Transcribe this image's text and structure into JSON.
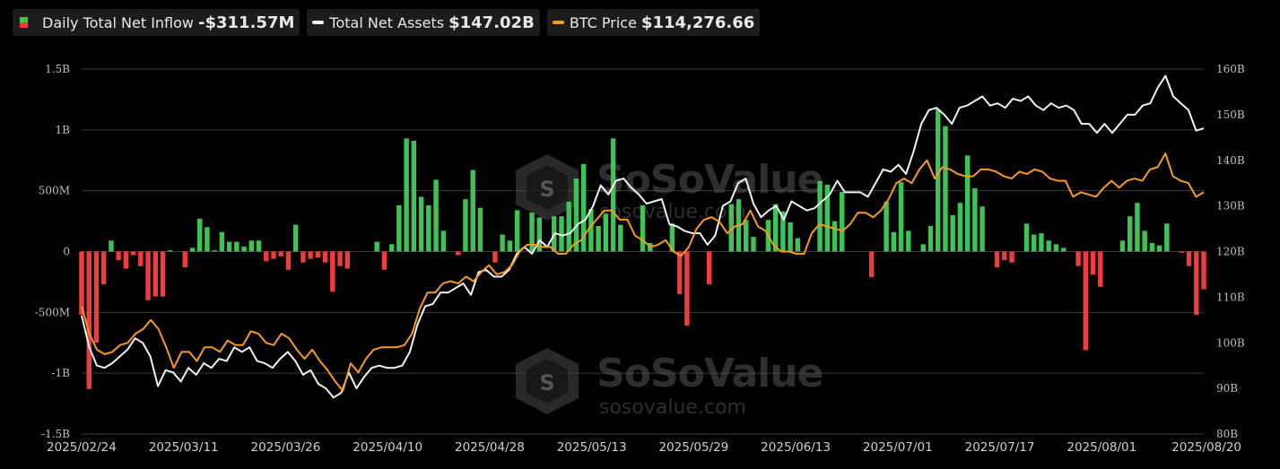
{
  "legend": {
    "inflow_label": "Daily Total Net Inflow",
    "inflow_value": "-$311.57M",
    "assets_label": "Total Net Assets",
    "assets_value": "$147.02B",
    "btc_label": "BTC Price",
    "btc_value": "$114,276.66"
  },
  "watermark": {
    "brand": "SoSoValue",
    "site": "sosovalue.com"
  },
  "colors": {
    "positive": "#3ec455",
    "negative": "#f03c3c",
    "assets": "#f2f2f2",
    "btc": "#f59a23",
    "grid": "#3a3a3a"
  },
  "chart_data": {
    "type": "bar",
    "title": "",
    "left_axis": {
      "range": [
        -1.5,
        1.5
      ],
      "unit": "B",
      "ticks": [
        "1.5B",
        "1B",
        "500M",
        "0",
        "-500M",
        "-1B",
        "-1.5B"
      ]
    },
    "right_axis": {
      "range": [
        80,
        160
      ],
      "unit": "B",
      "ticks": [
        "160B",
        "150B",
        "140B",
        "130B",
        "120B",
        "110B",
        "100B",
        "90B",
        "80B"
      ]
    },
    "x_tick_labels": [
      "2025/02/24",
      "2025/03/11",
      "2025/03/26",
      "2025/04/10",
      "2025/04/28",
      "2025/05/13",
      "2025/05/29",
      "2025/06/13",
      "2025/07/01",
      "2025/07/17",
      "2025/08/01",
      "2025/08/20"
    ],
    "grid": true,
    "series": [
      {
        "name": "Daily Total Net Inflow",
        "type": "bar",
        "axis": "left",
        "unit": "B",
        "values": [
          -0.52,
          -1.13,
          -0.75,
          -0.27,
          0.09,
          -0.07,
          -0.14,
          -0.03,
          -0.12,
          -0.4,
          -0.37,
          -0.37,
          0.01,
          0.0,
          -0.13,
          0.03,
          0.27,
          0.2,
          0.01,
          0.16,
          0.08,
          0.08,
          0.04,
          0.09,
          0.09,
          -0.08,
          -0.06,
          -0.04,
          -0.15,
          0.22,
          -0.09,
          -0.06,
          -0.05,
          -0.09,
          -0.33,
          -0.12,
          -0.14,
          0.0,
          0.0,
          0.0,
          0.08,
          -0.15,
          0.06,
          0.38,
          0.93,
          0.91,
          0.45,
          0.38,
          0.59,
          0.17,
          0.0,
          -0.03,
          0.43,
          0.67,
          0.36,
          0.0,
          -0.09,
          0.14,
          0.09,
          0.34,
          0.0,
          0.32,
          0.28,
          0.0,
          0.29,
          0.29,
          0.41,
          0.6,
          0.72,
          0.35,
          0.21,
          0.31,
          0.93,
          0.22,
          0.0,
          0.0,
          0.38,
          0.07,
          0.0,
          0.0,
          0.23,
          -0.35,
          -0.61,
          0.0,
          0.0,
          -0.27,
          0.0,
          0.0,
          0.39,
          0.43,
          0.26,
          0.12,
          0.0,
          0.26,
          0.39,
          0.33,
          0.24,
          0.11,
          0.0,
          0.0,
          0.58,
          0.55,
          0.25,
          0.49,
          0.0,
          0.0,
          0.0,
          -0.21,
          0.0,
          0.41,
          0.16,
          0.57,
          0.17,
          0.0,
          0.06,
          0.21,
          1.17,
          1.03,
          0.3,
          0.4,
          0.79,
          0.52,
          0.37,
          0.0,
          -0.13,
          -0.07,
          -0.09,
          0.0,
          0.23,
          0.14,
          0.15,
          0.09,
          0.06,
          0.03,
          0.0,
          -0.12,
          -0.81,
          -0.19,
          -0.29,
          0.0,
          0.0,
          0.09,
          0.29,
          0.4,
          0.17,
          0.07,
          0.05,
          0.23,
          0.0,
          -0.01,
          -0.12,
          -0.52,
          -0.31
        ]
      },
      {
        "name": "Total Net Assets",
        "type": "line",
        "axis": "right",
        "unit": "B",
        "values": [
          106,
          99,
          95,
          94.5,
          95.5,
          97,
          98.5,
          101,
          100,
          97,
          90.5,
          94,
          93.5,
          91.5,
          94.5,
          93,
          95.5,
          94.5,
          96.5,
          96,
          99,
          98,
          99,
          96,
          95.5,
          94.5,
          96.5,
          98,
          96,
          93,
          94,
          91,
          90,
          88,
          89,
          93.5,
          90,
          92.5,
          94.5,
          95,
          94.5,
          94.5,
          95,
          98,
          104,
          108,
          108.5,
          111,
          111,
          112,
          113,
          110.5,
          115.5,
          116,
          114.5,
          114.5,
          116,
          119.5,
          121,
          119.5,
          122.5,
          121,
          124,
          123.5,
          124,
          126,
          127,
          130,
          134.5,
          132.5,
          135.5,
          136,
          134,
          132.5,
          130.5,
          131,
          131.5,
          126,
          125.5,
          124.5,
          124,
          124,
          121.5,
          123.5,
          130,
          131,
          135,
          136,
          130.5,
          127.5,
          129,
          130,
          127,
          131,
          130,
          129,
          129.5,
          131,
          132.5,
          135.5,
          133,
          133,
          133,
          132,
          135,
          138,
          137.5,
          139,
          137,
          142,
          148,
          151,
          151.5,
          150,
          148,
          151.5,
          152,
          153,
          154,
          152,
          152.5,
          151.5,
          153.5,
          153,
          154,
          152,
          151,
          152.5,
          151.5,
          152,
          151,
          148,
          148,
          146,
          148,
          146,
          148,
          150,
          150,
          152,
          152.5,
          156,
          158.5,
          154,
          152.5,
          151,
          146.5,
          147
        ]
      },
      {
        "name": "BTC Price",
        "type": "line",
        "axis": "right",
        "unit": "B",
        "values": [
          108,
          102,
          98.5,
          97.5,
          98,
          99.5,
          100,
          102,
          103,
          105,
          103,
          99,
          94.5,
          98,
          98,
          96,
          99,
          99,
          98,
          100.5,
          99.5,
          99.5,
          102.5,
          102,
          100,
          99.5,
          102,
          101,
          98.5,
          96.5,
          98.5,
          96,
          94,
          91.5,
          89.5,
          95.5,
          93.5,
          96.5,
          98.5,
          99,
          99,
          99,
          99.5,
          102,
          107.5,
          111,
          111,
          113,
          113.5,
          113,
          114.5,
          113.5,
          115.5,
          117,
          115,
          115.5,
          117,
          120,
          121.5,
          121.5,
          121,
          121,
          119.5,
          119.5,
          121.5,
          122.5,
          125,
          127,
          129,
          129,
          127,
          127,
          123.5,
          122.5,
          121,
          121.5,
          122.5,
          120,
          119,
          121,
          125,
          127,
          127.5,
          126.5,
          124,
          125.5,
          126,
          129,
          125.5,
          124.5,
          121.5,
          120,
          120,
          119.5,
          119.5,
          124,
          126,
          125.5,
          125,
          124.5,
          126,
          128.5,
          128.5,
          127.5,
          129,
          131.5,
          135,
          136,
          135,
          138,
          140,
          136,
          138.5,
          138,
          137,
          136.5,
          136.5,
          138,
          138,
          137.5,
          136.5,
          136,
          137.5,
          137,
          138,
          137.5,
          136,
          135.5,
          135.5,
          132,
          133,
          132.5,
          132,
          134,
          135.5,
          134,
          135.5,
          136,
          135.5,
          138,
          138.5,
          141.5,
          136.5,
          135.5,
          135,
          132,
          133
        ]
      }
    ]
  }
}
